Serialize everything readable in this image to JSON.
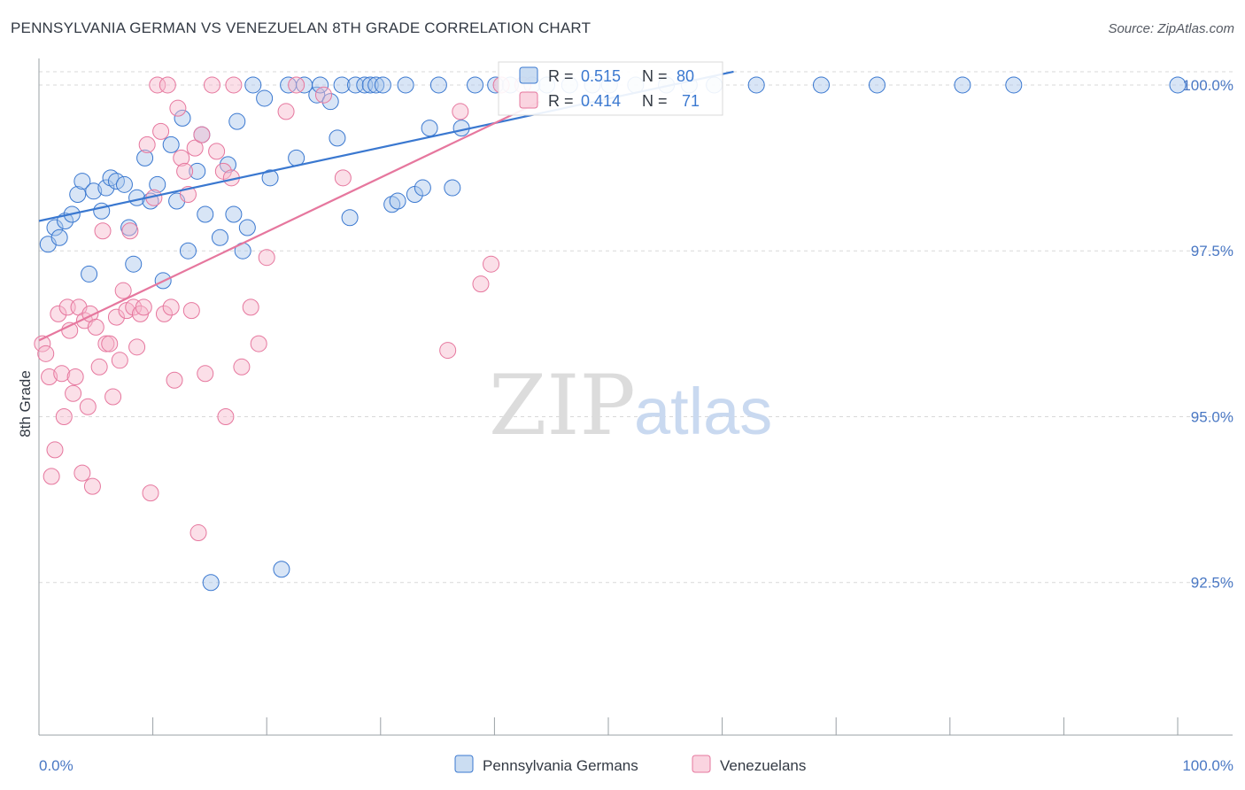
{
  "title": "PENNSYLVANIA GERMAN VS VENEZUELAN 8TH GRADE CORRELATION CHART",
  "source": "Source: ZipAtlas.com",
  "watermark": {
    "zip": "ZIP",
    "atlas": "atlas"
  },
  "colors": {
    "blue": "#3a78d0",
    "blue_fill": "#a9c6ea",
    "pink": "#e6779e",
    "pink_fill": "#f6b8cb",
    "grid": "#d9d9d9",
    "tick_text": "#4a78c4"
  },
  "chart_data": {
    "type": "scatter",
    "title": "PENNSYLVANIA GERMAN VS VENEZUELAN 8TH GRADE CORRELATION CHART",
    "xlabel": "",
    "ylabel": "8th Grade",
    "xlim": [
      0,
      100
    ],
    "ylim": [
      90.2,
      100.4
    ],
    "x_tick_labels": [
      "0.0%",
      "100.0%"
    ],
    "y_ticks": [
      92.5,
      95.0,
      97.5,
      100.0
    ],
    "y_tick_labels": [
      "92.5%",
      "95.0%",
      "97.5%",
      "100.0%"
    ],
    "legend": [
      {
        "name": "Pennsylvania Germans",
        "color": "#3a78d0"
      },
      {
        "name": "Venezuelans",
        "color": "#e6779e"
      }
    ],
    "stats": [
      {
        "r_label": "R =",
        "r": "0.515",
        "n_label": "N =",
        "n": "80"
      },
      {
        "r_label": "R =",
        "r": "0.414",
        "n_label": "N =",
        "n": "71"
      }
    ],
    "series": [
      {
        "name": "Pennsylvania Germans",
        "trend": [
          [
            0,
            97.95
          ],
          [
            61,
            100.2
          ]
        ],
        "points": [
          [
            0.8,
            97.6
          ],
          [
            1.4,
            97.85
          ],
          [
            1.8,
            97.7
          ],
          [
            2.3,
            97.95
          ],
          [
            2.9,
            98.05
          ],
          [
            3.4,
            98.35
          ],
          [
            3.8,
            98.55
          ],
          [
            4.4,
            97.15
          ],
          [
            4.8,
            98.4
          ],
          [
            5.5,
            98.1
          ],
          [
            5.9,
            98.45
          ],
          [
            6.3,
            98.6
          ],
          [
            6.8,
            98.55
          ],
          [
            7.5,
            98.5
          ],
          [
            7.9,
            97.85
          ],
          [
            8.3,
            97.3
          ],
          [
            8.6,
            98.3
          ],
          [
            9.3,
            98.9
          ],
          [
            9.8,
            98.25
          ],
          [
            10.4,
            98.5
          ],
          [
            10.9,
            97.05
          ],
          [
            11.6,
            99.1
          ],
          [
            12.1,
            98.25
          ],
          [
            12.6,
            99.5
          ],
          [
            13.1,
            97.5
          ],
          [
            13.9,
            98.7
          ],
          [
            14.3,
            99.25
          ],
          [
            14.6,
            98.05
          ],
          [
            15.1,
            92.5
          ],
          [
            15.9,
            97.7
          ],
          [
            16.6,
            98.8
          ],
          [
            17.1,
            98.05
          ],
          [
            17.4,
            99.45
          ],
          [
            17.9,
            97.5
          ],
          [
            18.3,
            97.85
          ],
          [
            18.8,
            100.0
          ],
          [
            19.8,
            99.8
          ],
          [
            20.3,
            98.6
          ],
          [
            21.3,
            92.7
          ],
          [
            21.9,
            100.0
          ],
          [
            22.6,
            98.9
          ],
          [
            23.3,
            100.0
          ],
          [
            24.4,
            99.85
          ],
          [
            24.7,
            100.0
          ],
          [
            25.6,
            99.75
          ],
          [
            26.2,
            99.2
          ],
          [
            26.6,
            100.0
          ],
          [
            27.3,
            98.0
          ],
          [
            27.8,
            100.0
          ],
          [
            28.6,
            100.0
          ],
          [
            29.1,
            100.0
          ],
          [
            29.6,
            100.0
          ],
          [
            30.2,
            100.0
          ],
          [
            31.0,
            98.2
          ],
          [
            31.5,
            98.25
          ],
          [
            32.2,
            100.0
          ],
          [
            33.0,
            98.35
          ],
          [
            33.7,
            98.45
          ],
          [
            34.3,
            99.35
          ],
          [
            35.1,
            100.0
          ],
          [
            36.3,
            98.45
          ],
          [
            37.1,
            99.35
          ],
          [
            38.3,
            100.0
          ],
          [
            40.1,
            100.0
          ],
          [
            41.4,
            100.0
          ],
          [
            43.3,
            100.0
          ],
          [
            44.6,
            100.0
          ],
          [
            46.6,
            100.0
          ],
          [
            48.6,
            100.0
          ],
          [
            50.1,
            100.0
          ],
          [
            52.4,
            100.0
          ],
          [
            55.1,
            100.0
          ],
          [
            57.1,
            100.0
          ],
          [
            59.3,
            100.0
          ],
          [
            63.0,
            100.0
          ],
          [
            68.7,
            100.0
          ],
          [
            73.6,
            100.0
          ],
          [
            81.1,
            100.0
          ],
          [
            85.6,
            100.0
          ],
          [
            100.0,
            100.0
          ]
        ]
      },
      {
        "name": "Venezuelans",
        "trend": [
          [
            0,
            96.15
          ],
          [
            44,
            99.75
          ]
        ],
        "points": [
          [
            0.3,
            96.1
          ],
          [
            0.6,
            95.95
          ],
          [
            0.9,
            95.6
          ],
          [
            1.1,
            94.1
          ],
          [
            1.4,
            94.5
          ],
          [
            1.7,
            96.55
          ],
          [
            2.0,
            95.65
          ],
          [
            2.2,
            95.0
          ],
          [
            2.5,
            96.65
          ],
          [
            2.7,
            96.3
          ],
          [
            3.0,
            95.35
          ],
          [
            3.2,
            95.6
          ],
          [
            3.5,
            96.65
          ],
          [
            3.8,
            94.15
          ],
          [
            4.0,
            96.45
          ],
          [
            4.3,
            95.15
          ],
          [
            4.5,
            96.55
          ],
          [
            4.7,
            93.95
          ],
          [
            5.0,
            96.35
          ],
          [
            5.3,
            95.75
          ],
          [
            5.6,
            97.8
          ],
          [
            5.9,
            96.1
          ],
          [
            6.2,
            96.1
          ],
          [
            6.5,
            95.3
          ],
          [
            6.8,
            96.5
          ],
          [
            7.1,
            95.85
          ],
          [
            7.4,
            96.9
          ],
          [
            7.7,
            96.6
          ],
          [
            8.0,
            97.8
          ],
          [
            8.3,
            96.65
          ],
          [
            8.6,
            96.05
          ],
          [
            8.9,
            96.55
          ],
          [
            9.2,
            96.65
          ],
          [
            9.5,
            99.1
          ],
          [
            9.8,
            93.85
          ],
          [
            10.1,
            98.3
          ],
          [
            10.4,
            100.0
          ],
          [
            10.7,
            99.3
          ],
          [
            11.0,
            96.55
          ],
          [
            11.3,
            100.0
          ],
          [
            11.6,
            96.65
          ],
          [
            11.9,
            95.55
          ],
          [
            12.2,
            99.65
          ],
          [
            12.5,
            98.9
          ],
          [
            12.8,
            98.7
          ],
          [
            13.1,
            98.35
          ],
          [
            13.4,
            96.6
          ],
          [
            13.7,
            99.05
          ],
          [
            14.0,
            93.25
          ],
          [
            14.3,
            99.25
          ],
          [
            14.6,
            95.65
          ],
          [
            15.2,
            100.0
          ],
          [
            15.6,
            99.0
          ],
          [
            16.2,
            98.7
          ],
          [
            16.4,
            95.0
          ],
          [
            16.9,
            98.6
          ],
          [
            17.1,
            100.0
          ],
          [
            17.8,
            95.75
          ],
          [
            18.6,
            96.65
          ],
          [
            19.3,
            96.1
          ],
          [
            20.0,
            97.4
          ],
          [
            21.7,
            99.6
          ],
          [
            22.6,
            100.0
          ],
          [
            25.0,
            99.85
          ],
          [
            26.7,
            98.6
          ],
          [
            35.9,
            96.0
          ],
          [
            37.0,
            99.6
          ],
          [
            38.8,
            97.0
          ],
          [
            39.7,
            97.3
          ],
          [
            40.6,
            100.0
          ],
          [
            42.5,
            100.0
          ]
        ]
      }
    ]
  }
}
